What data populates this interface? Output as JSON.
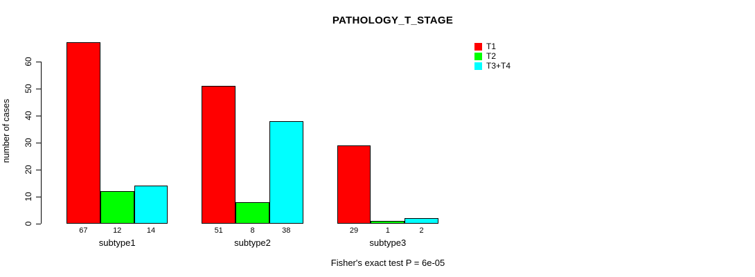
{
  "title": "PATHOLOGY_T_STAGE",
  "chart_data": {
    "type": "bar",
    "title": "PATHOLOGY_T_STAGE",
    "xlabel": "",
    "ylabel": "number of cases",
    "categories": [
      "subtype1",
      "subtype2",
      "subtype3"
    ],
    "series": [
      {
        "name": "T1",
        "color": "#FF0000",
        "values": [
          67,
          51,
          29
        ]
      },
      {
        "name": "T2",
        "color": "#00FF00",
        "values": [
          12,
          8,
          1
        ]
      },
      {
        "name": "T3+T4",
        "color": "#00FFFF",
        "values": [
          14,
          38,
          2
        ]
      }
    ],
    "yticks": [
      0,
      10,
      20,
      30,
      40,
      50,
      60
    ],
    "ylim": [
      0,
      60
    ],
    "grid": false,
    "legend_position": "top-right",
    "bar_value_labels": true,
    "annotation": "Fisher's exact test P = 6e-05"
  },
  "colors": {
    "background": "#FFFFFF",
    "axis": "#000000",
    "text": "#000000",
    "bar_border": "#000000"
  }
}
